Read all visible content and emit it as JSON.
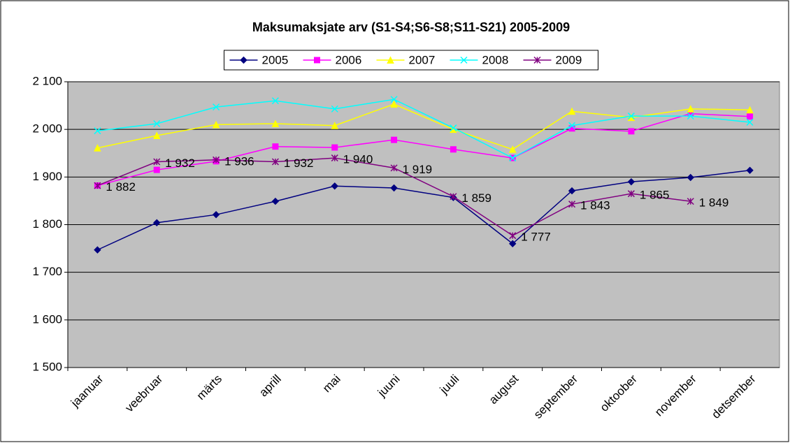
{
  "chart_data": {
    "type": "line",
    "title": "Maksumaksjate arv (S1-S4;S6-S8;S11-S21) 2005-2009",
    "categories": [
      "jaanuar",
      "veebruar",
      "märts",
      "aprill",
      "mai",
      "juuni",
      "juuli",
      "august",
      "september",
      "oktoober",
      "november",
      "detsember"
    ],
    "series": [
      {
        "name": "2005",
        "color": "#000080",
        "marker": "diamond",
        "values": [
          1747,
          1804,
          1821,
          1849,
          1881,
          1877,
          1857,
          1760,
          1871,
          1890,
          1899,
          1914
        ]
      },
      {
        "name": "2006",
        "color": "#ff00ff",
        "marker": "square",
        "values": [
          1882,
          1915,
          1933,
          1964,
          1962,
          1978,
          1958,
          1940,
          2002,
          1996,
          2033,
          2027
        ]
      },
      {
        "name": "2007",
        "color": "#ffff00",
        "marker": "triangle",
        "values": [
          1961,
          1987,
          2010,
          2012,
          2008,
          2053,
          2000,
          1958,
          2038,
          2025,
          2043,
          2041
        ]
      },
      {
        "name": "2008",
        "color": "#00ffff",
        "marker": "x",
        "values": [
          1997,
          2012,
          2047,
          2060,
          2043,
          2063,
          2003,
          1940,
          2008,
          2028,
          2028,
          2015
        ]
      },
      {
        "name": "2009",
        "color": "#800080",
        "marker": "star",
        "values": [
          1882,
          1932,
          1936,
          1932,
          1940,
          1919,
          1859,
          1777,
          1843,
          1865,
          1849,
          null
        ],
        "value_labels": [
          "1 882",
          "1 932",
          "1 936",
          "1 932",
          "1 940",
          "1 919",
          "1 859",
          "1 777",
          "1 843",
          "1 865",
          "1 849",
          null
        ]
      }
    ],
    "ylim": [
      1500,
      2100
    ],
    "yticks": [
      {
        "value": 1500,
        "label": "1 500"
      },
      {
        "value": 1600,
        "label": "1 600"
      },
      {
        "value": 1700,
        "label": "1 700"
      },
      {
        "value": 1800,
        "label": "1 800"
      },
      {
        "value": 1900,
        "label": "1 900"
      },
      {
        "value": 2000,
        "label": "2 000"
      },
      {
        "value": 2100,
        "label": "2 100"
      }
    ],
    "grid": true,
    "legend": "top",
    "plot_background": "#c0c0c0"
  }
}
